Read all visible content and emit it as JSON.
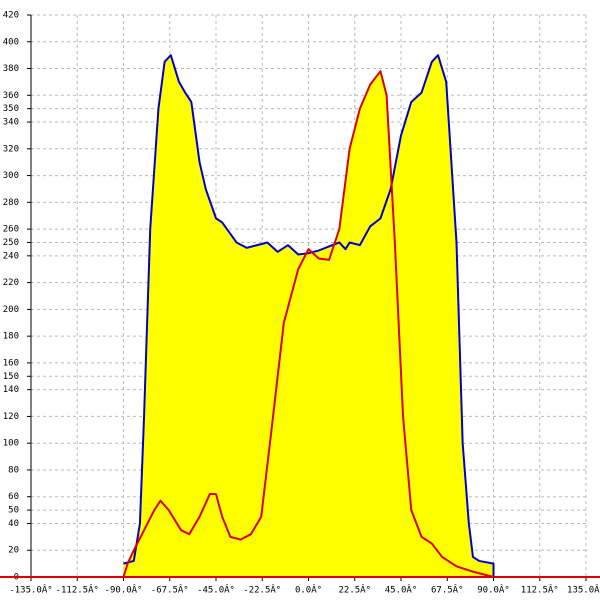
{
  "chart_data": {
    "type": "area-line",
    "xlim": [
      -135,
      135
    ],
    "xticks": [
      {
        "value": -135,
        "label": "-135.0Â°"
      },
      {
        "value": -112.5,
        "label": "-112.5Â°"
      },
      {
        "value": -90,
        "label": "-90.0Â°"
      },
      {
        "value": -67.5,
        "label": "-67.5Â°"
      },
      {
        "value": -45,
        "label": "-45.0Â°"
      },
      {
        "value": -22.5,
        "label": "-22.5Â°"
      },
      {
        "value": 0,
        "label": "0.0Â°"
      },
      {
        "value": 22.5,
        "label": "22.5Â°"
      },
      {
        "value": 45,
        "label": "45.0Â°"
      },
      {
        "value": 67.5,
        "label": "67.5Â°"
      },
      {
        "value": 90,
        "label": "90.0Â°"
      },
      {
        "value": 112.5,
        "label": "112.5Â°"
      },
      {
        "value": 135,
        "label": "135.0Â°"
      }
    ],
    "ylim": [
      0,
      420
    ],
    "yticks": [
      0,
      20,
      40,
      50,
      60,
      80,
      100,
      120,
      140,
      150,
      160,
      180,
      200,
      220,
      240,
      250,
      260,
      280,
      300,
      320,
      340,
      350,
      360,
      380,
      400,
      420
    ],
    "grid": true,
    "fill": "#ffff00",
    "series": [
      {
        "color": "#0000cc",
        "x": [
          -90,
          -85,
          -82,
          -80,
          -77,
          -73,
          -70,
          -67,
          -63,
          -60,
          -57,
          -53,
          -50,
          -45,
          -42,
          -35,
          -30,
          -25,
          -20,
          -15,
          -10,
          -5,
          0,
          5,
          10,
          15,
          18,
          20,
          25,
          30,
          35,
          40,
          45,
          50,
          55,
          60,
          63,
          67,
          72,
          75,
          78,
          80,
          83,
          90,
          90
        ],
        "values": [
          10,
          12,
          40,
          120,
          260,
          350,
          385,
          390,
          370,
          362,
          355,
          310,
          290,
          268,
          265,
          250,
          246,
          248,
          250,
          243,
          248,
          241,
          242,
          244,
          247,
          250,
          245,
          250,
          248,
          262,
          268,
          290,
          330,
          355,
          362,
          385,
          390,
          370,
          250,
          100,
          40,
          15,
          12,
          10,
          0
        ]
      },
      {
        "color": "#dd0000",
        "x": [
          -90,
          -88,
          -85,
          -80,
          -75,
          -72,
          -68,
          -62,
          -58,
          -53,
          -48,
          -45,
          -42,
          -38,
          -33,
          -28,
          -23,
          -18,
          -12,
          -5,
          0,
          5,
          10,
          15,
          20,
          25,
          30,
          35,
          38,
          42,
          46,
          50,
          55,
          60,
          65,
          72,
          80,
          90
        ],
        "values": [
          0,
          10,
          20,
          35,
          50,
          57,
          50,
          35,
          32,
          45,
          62,
          62,
          45,
          30,
          28,
          32,
          45,
          110,
          190,
          230,
          245,
          238,
          237,
          260,
          320,
          350,
          368,
          378,
          360,
          250,
          120,
          50,
          30,
          25,
          15,
          8,
          4,
          0
        ]
      }
    ]
  }
}
